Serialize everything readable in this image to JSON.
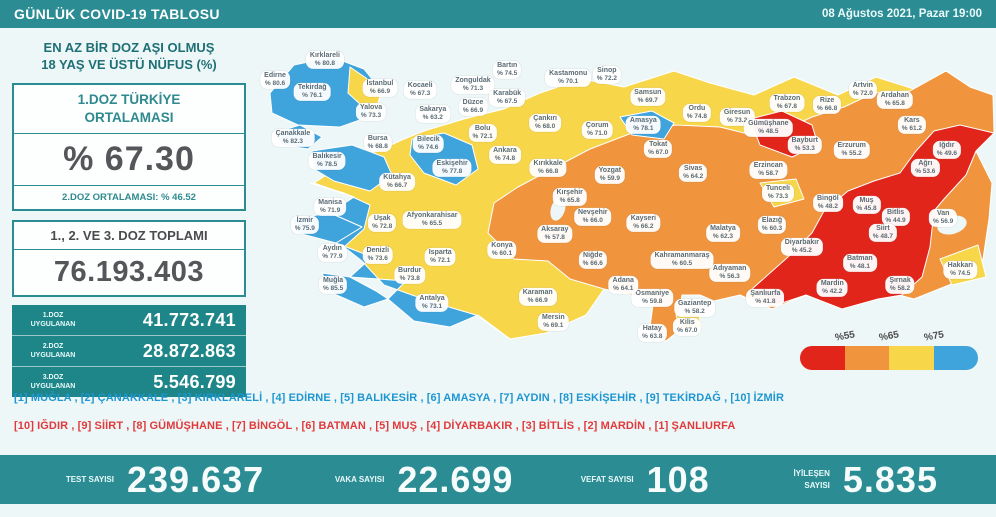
{
  "header": {
    "title": "GÜNLÜK COVID-19 TABLOSU",
    "date": "08 Ağustos 2021, Pazar 19:00"
  },
  "colors": {
    "accent_teal": "#2b8c93",
    "blue_list_text": "#1e96d2",
    "red_list_text": "#e03a3c"
  },
  "panel": {
    "heading1": "EN AZ BİR DOZ AŞI OLMUŞ",
    "heading2": "18 YAŞ VE ÜSTÜ NÜFUS (%)",
    "dose1_title": "1.DOZ TÜRKİYE ORTALAMASI",
    "dose1_value": "% 67.30",
    "dose2_note": "2.DOZ ORTALAMASI: % 46.52",
    "total_title": "1., 2. VE 3. DOZ TOPLAMI",
    "total_value": "76.193.403",
    "rows": [
      {
        "label": "1.DOZ UYGULANAN",
        "value": "41.773.741"
      },
      {
        "label": "2.DOZ UYGULANAN",
        "value": "28.872.863"
      },
      {
        "label": "3.DOZ UYGULANAN",
        "value": "5.546.799"
      }
    ]
  },
  "rankings": {
    "blue": [
      "[1] MUĞLA",
      "[2] ÇANAKKALE",
      "[3] KIRKLARELİ",
      "[4] EDİRNE",
      "[5] BALIKESİR",
      "[6] AMASYA",
      "[7] AYDIN",
      "[8] ESKİŞEHİR",
      "[9] TEKİRDAĞ",
      "[10] İZMİR"
    ],
    "red": [
      "[10] IĞDIR",
      "[9] SİİRT",
      "[8] GÜMÜŞHANE",
      "[7] BİNGÖL",
      "[6] BATMAN",
      "[5] MUŞ",
      "[4] DİYARBAKIR",
      "[3] BİTLİS",
      "[2] MARDİN",
      "[1] ŞANLIURFA"
    ]
  },
  "footer": {
    "stats": [
      {
        "label": "TEST SAYISI",
        "value": "239.637"
      },
      {
        "label": "VAKA SAYISI",
        "value": "22.699"
      },
      {
        "label": "VEFAT SAYISI",
        "value": "108"
      },
      {
        "label": "İYİLEŞEN SAYISI",
        "value": "5.835"
      }
    ]
  },
  "chart_data": {
    "type": "heatmap",
    "subtype": "choropleth-map-of-turkey",
    "title": "EN AZ BİR DOZ AŞI OLMUŞ 18 YAŞ VE ÜSTÜ NÜFUS (%)",
    "legend": {
      "thresholds": [
        "%55",
        "%65",
        "%75"
      ],
      "colors": {
        "red": "#e1251b",
        "orange": "#f0953e",
        "yellow": "#f8d64a",
        "blue": "#3fa3dc"
      },
      "position": "bottom-right"
    },
    "provinces": [
      {
        "name": "Edirne",
        "value": "80.6",
        "x": 3.1,
        "y": 13.2
      },
      {
        "name": "Kırklareli",
        "value": "80.8",
        "x": 9.8,
        "y": 7.6
      },
      {
        "name": "Tekirdağ",
        "value": "76.1",
        "x": 8.1,
        "y": 16.5
      },
      {
        "name": "İstanbul",
        "value": "66.9",
        "x": 17.2,
        "y": 15.4
      },
      {
        "name": "Çanakkale",
        "value": "82.3",
        "x": 5.5,
        "y": 29.4
      },
      {
        "name": "Yalova",
        "value": "73.3",
        "x": 16.0,
        "y": 22.1
      },
      {
        "name": "Kocaeli",
        "value": "67.3",
        "x": 22.6,
        "y": 16.0
      },
      {
        "name": "Sakarya",
        "value": "63.2",
        "x": 24.3,
        "y": 22.7
      },
      {
        "name": "Düzce",
        "value": "66.9",
        "x": 29.7,
        "y": 20.7
      },
      {
        "name": "Zonguldak",
        "value": "71.3",
        "x": 29.7,
        "y": 14.6
      },
      {
        "name": "Bartın",
        "value": "74.5",
        "x": 34.3,
        "y": 10.4
      },
      {
        "name": "Karabük",
        "value": "67.5",
        "x": 34.3,
        "y": 18.2
      },
      {
        "name": "Kastamonu",
        "value": "70.1",
        "x": 42.5,
        "y": 12.6
      },
      {
        "name": "Sinop",
        "value": "72.2",
        "x": 47.7,
        "y": 11.8
      },
      {
        "name": "Samsun",
        "value": "69.7",
        "x": 53.2,
        "y": 17.9
      },
      {
        "name": "Bolu",
        "value": "72.1",
        "x": 31.0,
        "y": 28.0
      },
      {
        "name": "Bursa",
        "value": "68.8",
        "x": 16.9,
        "y": 30.8
      },
      {
        "name": "Bilecik",
        "value": "74.6",
        "x": 23.7,
        "y": 31.1
      },
      {
        "name": "Balıkesir",
        "value": "78.5",
        "x": 10.1,
        "y": 35.9
      },
      {
        "name": "Eskişehir",
        "value": "77.8",
        "x": 26.9,
        "y": 37.8
      },
      {
        "name": "Kütahya",
        "value": "66.7",
        "x": 19.5,
        "y": 41.7
      },
      {
        "name": "Manisa",
        "value": "71.9",
        "x": 10.5,
        "y": 48.7
      },
      {
        "name": "İzmir",
        "value": "75.9",
        "x": 7.1,
        "y": 53.8
      },
      {
        "name": "Uşak",
        "value": "72.8",
        "x": 17.5,
        "y": 53.2
      },
      {
        "name": "Afyonkarahisar",
        "value": "65.5",
        "x": 24.2,
        "y": 52.4
      },
      {
        "name": "Aydın",
        "value": "77.9",
        "x": 10.8,
        "y": 61.6
      },
      {
        "name": "Denizli",
        "value": "73.6",
        "x": 16.9,
        "y": 62.2
      },
      {
        "name": "Isparta",
        "value": "72.1",
        "x": 25.3,
        "y": 62.7
      },
      {
        "name": "Muğla",
        "value": "85.5",
        "x": 10.9,
        "y": 70.6
      },
      {
        "name": "Burdur",
        "value": "73.8",
        "x": 21.2,
        "y": 67.8
      },
      {
        "name": "Antalya",
        "value": "73.1",
        "x": 24.2,
        "y": 75.6
      },
      {
        "name": "Çankırı",
        "value": "68.0",
        "x": 39.4,
        "y": 25.2
      },
      {
        "name": "Çorum",
        "value": "71.0",
        "x": 46.4,
        "y": 27.2
      },
      {
        "name": "Amasya",
        "value": "78.1",
        "x": 52.6,
        "y": 25.8
      },
      {
        "name": "Tokat",
        "value": "67.0",
        "x": 54.6,
        "y": 32.5
      },
      {
        "name": "Ordu",
        "value": "74.8",
        "x": 59.8,
        "y": 22.4
      },
      {
        "name": "Giresun",
        "value": "73.2",
        "x": 65.2,
        "y": 23.5
      },
      {
        "name": "Trabzon",
        "value": "67.8",
        "x": 71.9,
        "y": 19.6
      },
      {
        "name": "Rize",
        "value": "66.8",
        "x": 77.3,
        "y": 20.2
      },
      {
        "name": "Artvin",
        "value": "72.0",
        "x": 82.1,
        "y": 16.0
      },
      {
        "name": "Ardahan",
        "value": "65.8",
        "x": 86.4,
        "y": 18.8
      },
      {
        "name": "Kars",
        "value": "61.2",
        "x": 88.7,
        "y": 25.8
      },
      {
        "name": "Iğdır",
        "value": "49.6",
        "x": 93.4,
        "y": 32.8
      },
      {
        "name": "Ağrı",
        "value": "53.6",
        "x": 90.5,
        "y": 37.8
      },
      {
        "name": "Erzurum",
        "value": "55.2",
        "x": 80.6,
        "y": 32.8
      },
      {
        "name": "Bayburt",
        "value": "53.3",
        "x": 74.3,
        "y": 31.4
      },
      {
        "name": "Gümüşhane",
        "value": "48.5",
        "x": 69.4,
        "y": 26.6
      },
      {
        "name": "Erzincan",
        "value": "58.7",
        "x": 69.4,
        "y": 38.4
      },
      {
        "name": "Tunceli",
        "value": "73.3",
        "x": 70.7,
        "y": 44.8
      },
      {
        "name": "Bingöl",
        "value": "48.2",
        "x": 77.4,
        "y": 47.6
      },
      {
        "name": "Muş",
        "value": "45.8",
        "x": 82.6,
        "y": 48.2
      },
      {
        "name": "Bitlis",
        "value": "44.9",
        "x": 86.5,
        "y": 51.5
      },
      {
        "name": "Van",
        "value": "56.9",
        "x": 92.9,
        "y": 51.8
      },
      {
        "name": "Hakkari",
        "value": "74.5",
        "x": 95.2,
        "y": 66.4
      },
      {
        "name": "Şırnak",
        "value": "58.2",
        "x": 87.1,
        "y": 70.6
      },
      {
        "name": "Siirt",
        "value": "48.7",
        "x": 84.8,
        "y": 56.0
      },
      {
        "name": "Batman",
        "value": "48.1",
        "x": 81.7,
        "y": 64.4
      },
      {
        "name": "Mardin",
        "value": "42.2",
        "x": 78.0,
        "y": 71.4
      },
      {
        "name": "Diyarbakır",
        "value": "45.2",
        "x": 73.9,
        "y": 59.9
      },
      {
        "name": "Şanlıurfa",
        "value": "41.8",
        "x": 69.0,
        "y": 74.2
      },
      {
        "name": "Adıyaman",
        "value": "56.3",
        "x": 64.2,
        "y": 67.2
      },
      {
        "name": "Malatya",
        "value": "62.3",
        "x": 63.3,
        "y": 56.0
      },
      {
        "name": "Elazığ",
        "value": "60.3",
        "x": 69.9,
        "y": 53.8
      },
      {
        "name": "Gaziantep",
        "value": "58.2",
        "x": 59.5,
        "y": 77.0
      },
      {
        "name": "Kilis",
        "value": "67.0",
        "x": 58.5,
        "y": 82.4
      },
      {
        "name": "Hatay",
        "value": "63.8",
        "x": 53.8,
        "y": 84.0
      },
      {
        "name": "Osmaniye",
        "value": "59.8",
        "x": 53.8,
        "y": 74.2
      },
      {
        "name": "Kahramanmaraş",
        "value": "60.5",
        "x": 57.8,
        "y": 63.6
      },
      {
        "name": "Adana",
        "value": "64.1",
        "x": 49.9,
        "y": 70.6
      },
      {
        "name": "Mersin",
        "value": "69.1",
        "x": 40.5,
        "y": 80.9
      },
      {
        "name": "Karaman",
        "value": "66.9",
        "x": 38.4,
        "y": 73.9
      },
      {
        "name": "Konya",
        "value": "60.1",
        "x": 33.6,
        "y": 60.8
      },
      {
        "name": "Niğde",
        "value": "66.6",
        "x": 45.8,
        "y": 63.6
      },
      {
        "name": "Aksaray",
        "value": "57.8",
        "x": 40.7,
        "y": 56.3
      },
      {
        "name": "Nevşehir",
        "value": "66.0",
        "x": 45.8,
        "y": 51.5
      },
      {
        "name": "Kayseri",
        "value": "66.2",
        "x": 52.6,
        "y": 53.2
      },
      {
        "name": "Sivas",
        "value": "64.2",
        "x": 59.3,
        "y": 39.2
      },
      {
        "name": "Yozgat",
        "value": "59.9",
        "x": 48.1,
        "y": 39.8
      },
      {
        "name": "Kırşehir",
        "value": "65.8",
        "x": 42.7,
        "y": 45.9
      },
      {
        "name": "Kırıkkale",
        "value": "66.8",
        "x": 39.8,
        "y": 37.8
      },
      {
        "name": "Ankara",
        "value": "74.8",
        "x": 34.0,
        "y": 34.2
      }
    ]
  }
}
